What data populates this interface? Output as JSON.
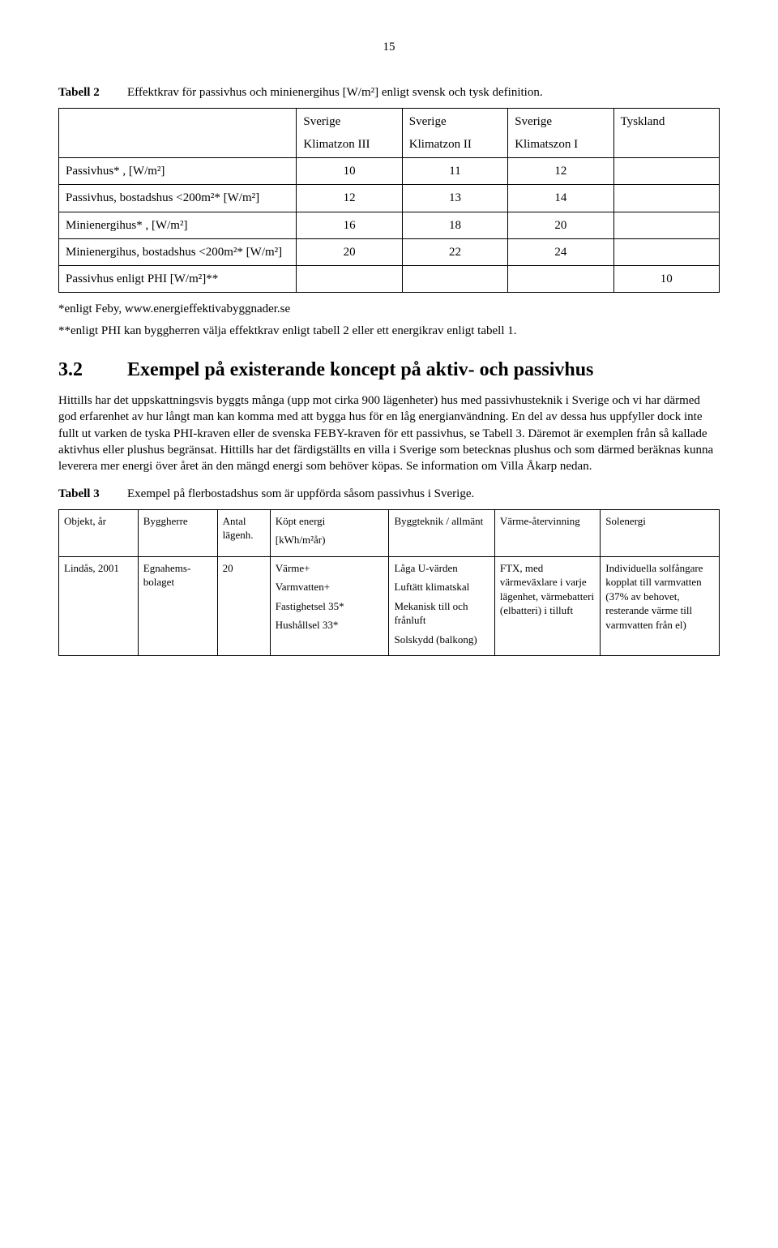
{
  "page_number": "15",
  "table2": {
    "caption_label": "Tabell 2",
    "caption_text": "Effektkrav för passivhus och minienergihus [W/m²] enligt svensk och tysk definition.",
    "header": {
      "c1": "",
      "c2_top": "Sverige",
      "c2_bot": "Klimatzon III",
      "c3_top": "Sverige",
      "c3_bot": "Klimatzon II",
      "c4_top": "Sverige",
      "c4_bot": "Klimatszon I",
      "c5": "Tyskland"
    },
    "rows": [
      {
        "label": "Passivhus* , [W/m²]",
        "v1": "10",
        "v2": "11",
        "v3": "12",
        "v4": ""
      },
      {
        "label": "Passivhus, bostadshus <200m²* [W/m²]",
        "v1": "12",
        "v2": "13",
        "v3": "14",
        "v4": ""
      },
      {
        "label": "Minienergihus* , [W/m²]",
        "v1": "16",
        "v2": "18",
        "v3": "20",
        "v4": ""
      },
      {
        "label": "Minienergihus, bostadshus <200m²* [W/m²]",
        "v1": "20",
        "v2": "22",
        "v3": "24",
        "v4": ""
      },
      {
        "label": "Passivhus enligt PHI [W/m²]**",
        "v1": "",
        "v2": "",
        "v3": "",
        "v4": "10"
      }
    ],
    "footnote1": "*enligt Feby, www.energieffektivabyggnader.se",
    "footnote2": "**enligt PHI kan byggherren välja effektkrav enligt tabell 2 eller ett energikrav enligt tabell 1."
  },
  "section": {
    "number": "3.2",
    "title": "Exempel på existerande koncept på aktiv- och passivhus",
    "body": "Hittills har det uppskattningsvis byggts många (upp mot cirka 900 lägenheter) hus med passivhusteknik i Sverige och vi har därmed god erfarenhet av hur långt man kan komma med att bygga hus för en låg energianvändning. En del av dessa hus uppfyller dock inte fullt ut varken de tyska PHI-kraven eller de svenska FEBY-kraven för ett passivhus, se Tabell 3. Däremot är exemplen från så kallade aktivhus eller plushus begränsat. Hittills har det färdigställts en villa i Sverige som betecknas plushus och som därmed beräknas kunna leverera mer energi över året än den mängd energi som behöver köpas. Se information om Villa Åkarp nedan."
  },
  "table3": {
    "caption_label": "Tabell 3",
    "caption_text": "Exempel på flerbostadshus som är uppförda såsom passivhus i Sverige.",
    "columns": [
      "Objekt, år",
      "Byggherre",
      "Antal lägenh.",
      "Köpt energi\n[kWh/m²år)",
      "Byggteknik / allmänt",
      "Värme-återvinning",
      "Solenergi"
    ],
    "widths": [
      "12%",
      "12%",
      "8%",
      "18%",
      "16%",
      "16%",
      "18%"
    ],
    "row": {
      "objekt": "Lindås, 2001",
      "byggherre": "Egnahems-bolaget",
      "antal": "20",
      "energi": "Värme+\nVarmvatten+\nFastighetsel 35*\nHushållsel 33*",
      "byggteknik": "Låga U-värden\nLuftätt klimatskal\nMekanisk till och frånluft\nSolskydd (balkong)",
      "varme": "FTX, med värmeväxlare i varje lägenhet, värmebatteri (elbatteri) i tilluft",
      "solenergi": "Individuella solfångare kopplat till varmvatten (37% av behovet, resterande värme till varmvatten från el)"
    }
  }
}
